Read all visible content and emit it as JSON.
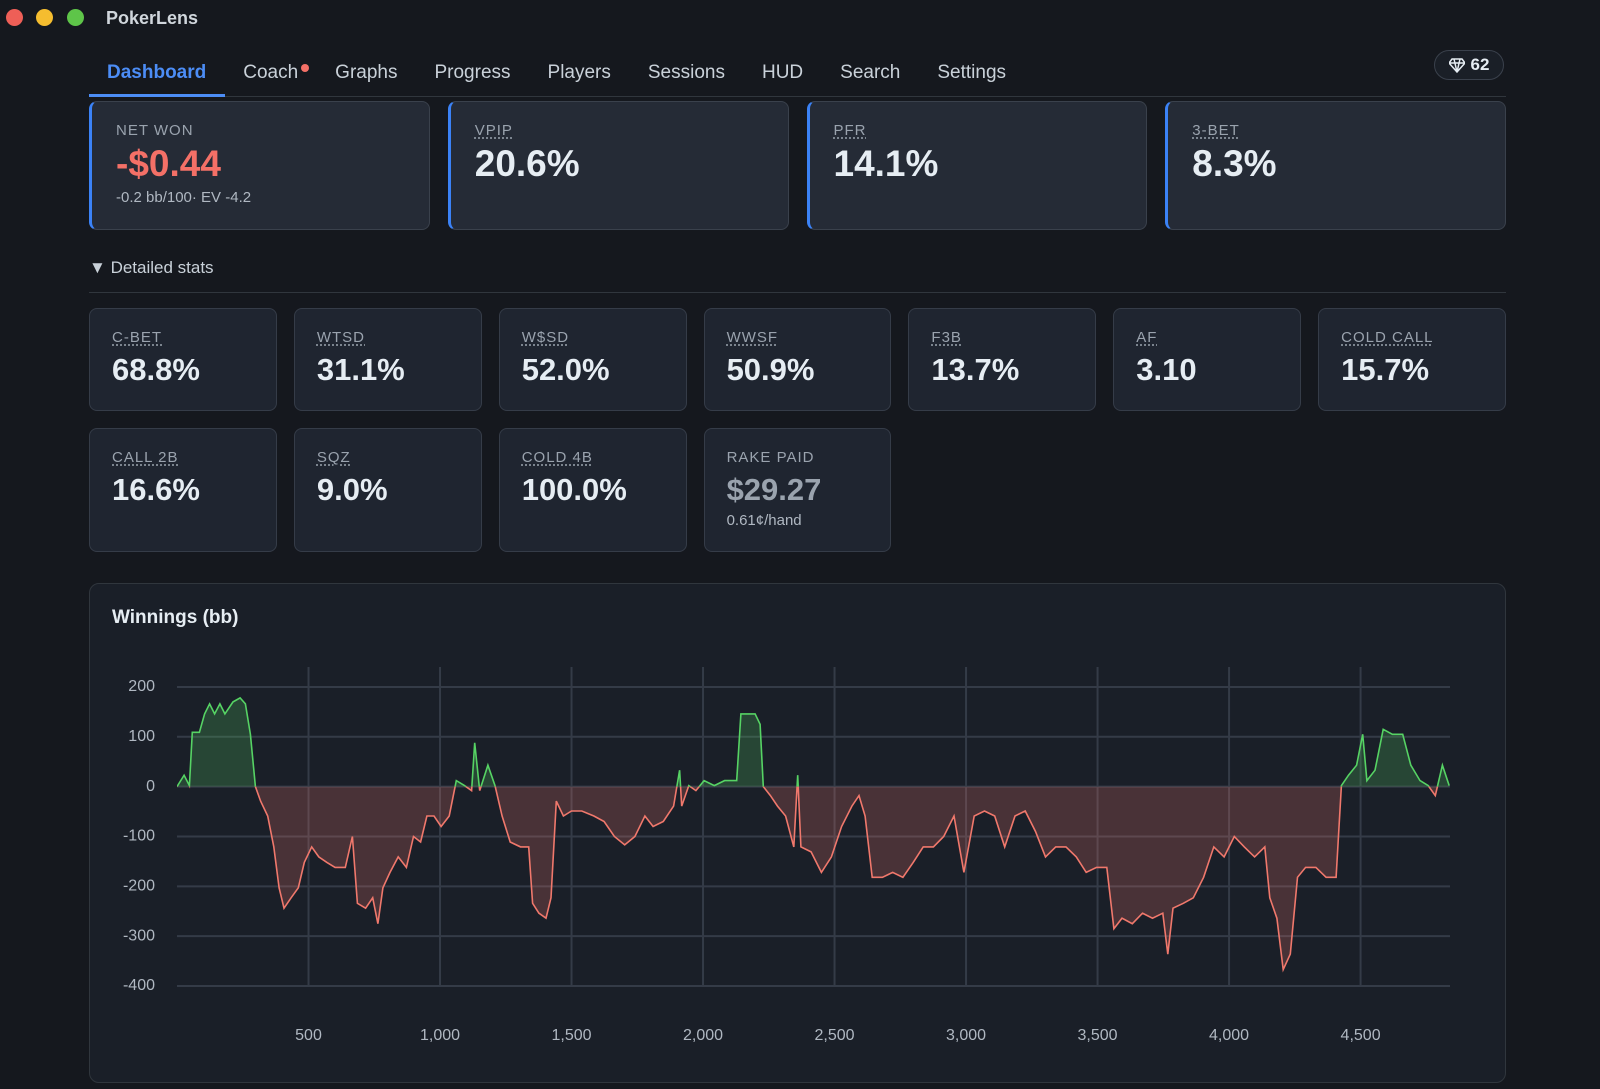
{
  "app": {
    "title": "PokerLens"
  },
  "tabs": [
    {
      "label": "Dashboard",
      "active": true
    },
    {
      "label": "Coach",
      "notification": true
    },
    {
      "label": "Graphs"
    },
    {
      "label": "Progress"
    },
    {
      "label": "Players"
    },
    {
      "label": "Sessions"
    },
    {
      "label": "HUD"
    },
    {
      "label": "Search"
    },
    {
      "label": "Settings"
    }
  ],
  "badge": {
    "count": "62"
  },
  "summary_cards": [
    {
      "label": "NET WON",
      "value": "-$0.44",
      "sub": "-0.2 bb/100· EV -4.2",
      "value_color": "#f47067"
    },
    {
      "label": "VPIP",
      "value": "20.6%"
    },
    {
      "label": "PFR",
      "value": "14.1%"
    },
    {
      "label": "3-BET",
      "value": "8.3%"
    }
  ],
  "details": {
    "label": "Detailed stats",
    "cards": [
      {
        "label": "C-BET",
        "value": "68.8%"
      },
      {
        "label": "WTSD",
        "value": "31.1%"
      },
      {
        "label": "W$SD",
        "value": "52.0%"
      },
      {
        "label": "WWSF",
        "value": "50.9%"
      },
      {
        "label": "F3B",
        "value": "13.7%"
      },
      {
        "label": "AF",
        "value": "3.10"
      },
      {
        "label": "COLD CALL",
        "value": "15.7%"
      },
      {
        "label": "CALL 2B",
        "value": "16.6%"
      },
      {
        "label": "SQZ",
        "value": "9.0%"
      },
      {
        "label": "COLD 4B",
        "value": "100.0%"
      },
      {
        "label": "RAKE PAID",
        "value": "$29.27",
        "sub": "0.61¢/hand",
        "value_color": "#9aa3ae"
      }
    ]
  },
  "chart_data": {
    "type": "line",
    "title": "Winnings (bb)",
    "x": [
      0,
      27,
      47,
      58,
      85,
      105,
      124,
      143,
      163,
      182,
      213,
      240,
      260,
      279,
      298,
      318,
      345,
      368,
      388,
      407,
      434,
      461,
      484,
      512,
      539,
      570,
      601,
      640,
      667,
      686,
      717,
      744,
      764,
      783,
      810,
      841,
      872,
      899,
      926,
      950,
      977,
      1004,
      1035,
      1062,
      1093,
      1120,
      1132,
      1151,
      1182,
      1209,
      1236,
      1267,
      1306,
      1337,
      1352,
      1376,
      1403,
      1422,
      1442,
      1469,
      1500,
      1539,
      1585,
      1624,
      1663,
      1702,
      1741,
      1779,
      1810,
      1849,
      1888,
      1911,
      1919,
      1946,
      1973,
      2004,
      2043,
      2082,
      2128,
      2144,
      2171,
      2198,
      2217,
      2229,
      2256,
      2283,
      2314,
      2345,
      2360,
      2372,
      2411,
      2450,
      2488,
      2527,
      2566,
      2593,
      2616,
      2643,
      2682,
      2721,
      2760,
      2799,
      2837,
      2876,
      2915,
      2954,
      2992,
      3031,
      3070,
      3109,
      3147,
      3186,
      3225,
      3264,
      3302,
      3341,
      3380,
      3419,
      3457,
      3496,
      3535,
      3562,
      3593,
      3632,
      3671,
      3709,
      3748,
      3767,
      3787,
      3826,
      3864,
      3903,
      3942,
      3981,
      4020,
      4058,
      4097,
      4136,
      4155,
      4182,
      4206,
      4233,
      4260,
      4291,
      4330,
      4369,
      4407,
      4427,
      4454,
      4485,
      4508,
      4524,
      4555,
      4586,
      4621,
      4660,
      4691,
      4726,
      4757,
      4784,
      4811,
      4837
    ],
    "values": [
      0,
      23,
      2,
      109,
      109,
      146,
      166,
      146,
      166,
      146,
      170,
      178,
      166,
      105,
      0,
      -29,
      -59,
      -121,
      -203,
      -244,
      -223,
      -203,
      -152,
      -121,
      -141,
      -152,
      -162,
      -162,
      -100,
      -234,
      -244,
      -223,
      -275,
      -203,
      -172,
      -141,
      -162,
      -100,
      -111,
      -59,
      -59,
      -80,
      -59,
      12,
      2,
      -8,
      88,
      -8,
      43,
      2,
      -59,
      -111,
      -121,
      -121,
      -234,
      -254,
      -264,
      -223,
      -29,
      -59,
      -49,
      -49,
      -59,
      -70,
      -100,
      -117,
      -100,
      -59,
      -80,
      -70,
      -39,
      33,
      -39,
      2,
      -8,
      12,
      2,
      12,
      12,
      146,
      146,
      146,
      125,
      0,
      -18,
      -39,
      -59,
      -121,
      23,
      -121,
      -131,
      -172,
      -141,
      -80,
      -39,
      -18,
      -59,
      -182,
      -182,
      -172,
      -182,
      -152,
      -121,
      -121,
      -100,
      -59,
      -172,
      -59,
      -49,
      -59,
      -121,
      -59,
      -49,
      -90,
      -141,
      -121,
      -121,
      -141,
      -172,
      -162,
      -162,
      -285,
      -264,
      -275,
      -254,
      -264,
      -254,
      -336,
      -244,
      -234,
      -223,
      -182,
      -121,
      -141,
      -100,
      -121,
      -141,
      -121,
      -223,
      -264,
      -367,
      -336,
      -182,
      -162,
      -162,
      -182,
      -182,
      2,
      23,
      43,
      105,
      12,
      33,
      115,
      105,
      105,
      43,
      12,
      2,
      -18,
      43,
      2
    ],
    "xlim": [
      0,
      4840
    ],
    "ylim": [
      -400,
      240
    ],
    "xticks": [
      500,
      {
        "value": 1000,
        "label": "1,000"
      },
      {
        "value": 1500,
        "label": "1,500"
      },
      {
        "value": 2000,
        "label": "2,000"
      },
      {
        "value": 2500,
        "label": "2,500"
      },
      {
        "value": 3000,
        "label": "3,000"
      },
      {
        "value": 3500,
        "label": "3,500"
      },
      {
        "value": 4000,
        "label": "4,000"
      },
      {
        "value": 4500,
        "label": "4,500"
      }
    ],
    "yticks": [
      -400,
      -300,
      -200,
      -100,
      0,
      100,
      200
    ],
    "grid": true,
    "positive_color": "#56d364",
    "negative_color": "#f0786c"
  }
}
